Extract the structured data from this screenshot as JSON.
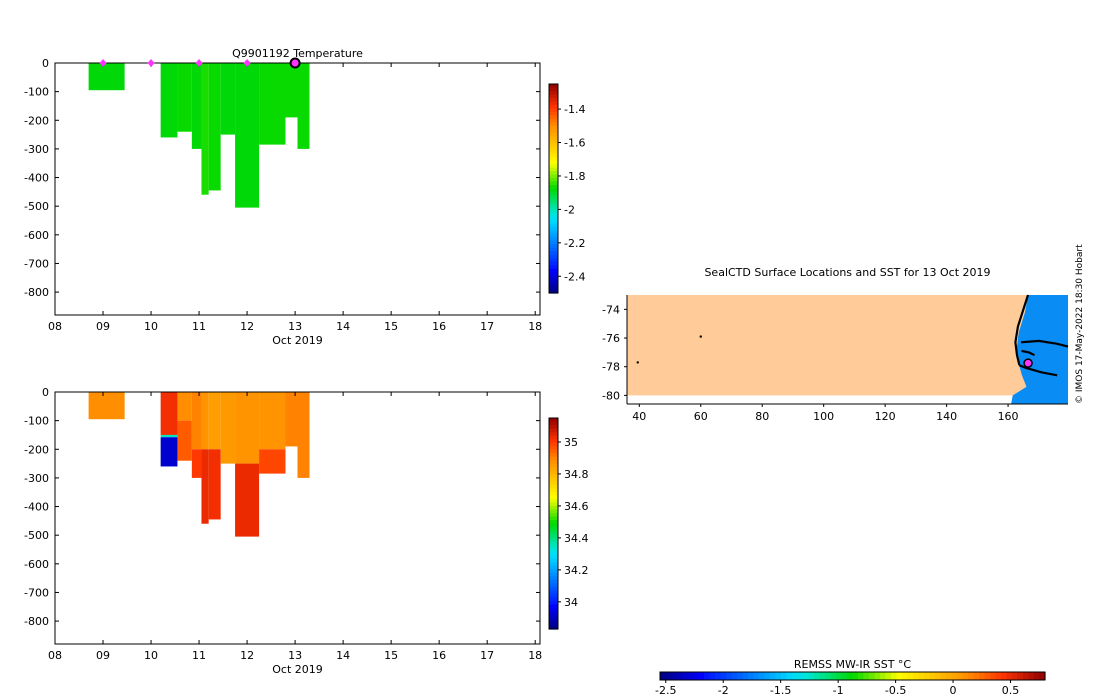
{
  "credit": "© IMOS 17-May-2022 18:30 Hobart",
  "colors": {
    "land": "#ffcc99",
    "ice_blue": "#0a8cf5",
    "coast": "#000000",
    "marker": "#ff33ff",
    "marker_edge": "#000000"
  },
  "chart_data": [
    {
      "id": "temperature",
      "type": "heatmap",
      "title": "Q9901192  Temperature",
      "xlabel": "Oct 2019",
      "ylabel": "",
      "xlim": [
        8,
        18.1
      ],
      "ylim": [
        -880,
        0
      ],
      "x_tick_labels": [
        "08",
        "09",
        "10",
        "11",
        "12",
        "13",
        "14",
        "15",
        "16",
        "17",
        "18"
      ],
      "x_tick_values": [
        8,
        9,
        10,
        11,
        12,
        13,
        14,
        15,
        16,
        17,
        18
      ],
      "y_tick_labels": [
        "0",
        "-100",
        "-200",
        "-300",
        "-400",
        "-500",
        "-600",
        "-700",
        "-800"
      ],
      "y_tick_values": [
        0,
        -100,
        -200,
        -300,
        -400,
        -500,
        -600,
        -700,
        -800
      ],
      "color_range": [
        -2.5,
        -1.25
      ],
      "colorbar_ticks": [
        "-1.4",
        "-1.6",
        "-1.8",
        "-2",
        "-2.2",
        "-2.4"
      ],
      "colorbar_tick_values": [
        -1.4,
        -1.6,
        -1.8,
        -2,
        -2.2,
        -2.4
      ],
      "profile_markers_x": [
        9.0,
        10.0,
        11.0,
        12.0
      ],
      "current_marker_x": 13.0,
      "columns": [
        {
          "x0": 8.7,
          "x1": 9.45,
          "cells": [
            [
              0,
              -95,
              -1.88
            ]
          ]
        },
        {
          "x0": 10.2,
          "x1": 10.55,
          "cells": [
            [
              0,
              -260,
              -1.88
            ]
          ]
        },
        {
          "x0": 10.55,
          "x1": 10.85,
          "cells": [
            [
              0,
              -240,
              -1.87
            ]
          ]
        },
        {
          "x0": 10.85,
          "x1": 11.05,
          "cells": [
            [
              0,
              -300,
              -1.88
            ]
          ]
        },
        {
          "x0": 11.05,
          "x1": 11.2,
          "cells": [
            [
              0,
              -460,
              -1.86
            ]
          ]
        },
        {
          "x0": 11.2,
          "x1": 11.45,
          "cells": [
            [
              0,
              -445,
              -1.87
            ]
          ]
        },
        {
          "x0": 11.45,
          "x1": 11.75,
          "cells": [
            [
              0,
              -250,
              -1.88
            ]
          ]
        },
        {
          "x0": 11.75,
          "x1": 12.25,
          "cells": [
            [
              0,
              -505,
              -1.88
            ]
          ]
        },
        {
          "x0": 12.25,
          "x1": 12.8,
          "cells": [
            [
              0,
              -285,
              -1.87
            ]
          ]
        },
        {
          "x0": 12.8,
          "x1": 13.05,
          "cells": [
            [
              0,
              -190,
              -1.87
            ]
          ]
        },
        {
          "x0": 13.05,
          "x1": 13.3,
          "cells": [
            [
              0,
              -300,
              -1.87
            ]
          ]
        }
      ]
    },
    {
      "id": "salinity",
      "type": "heatmap",
      "title": "",
      "xlabel": "Oct 2019",
      "ylabel": "",
      "xlim": [
        8,
        18.1
      ],
      "ylim": [
        -880,
        0
      ],
      "x_tick_labels": [
        "08",
        "09",
        "10",
        "11",
        "12",
        "13",
        "14",
        "15",
        "16",
        "17",
        "18"
      ],
      "x_tick_values": [
        8,
        9,
        10,
        11,
        12,
        13,
        14,
        15,
        16,
        17,
        18
      ],
      "y_tick_labels": [
        "0",
        "-100",
        "-200",
        "-300",
        "-400",
        "-500",
        "-600",
        "-700",
        "-800"
      ],
      "y_tick_values": [
        0,
        -100,
        -200,
        -300,
        -400,
        -500,
        -600,
        -700,
        -800
      ],
      "color_range": [
        33.83,
        35.15
      ],
      "colorbar_ticks": [
        "35",
        "34.8",
        "34.6",
        "34.4",
        "34.2",
        "34"
      ],
      "colorbar_tick_values": [
        35,
        34.8,
        34.6,
        34.4,
        34.2,
        34
      ],
      "columns": [
        {
          "x0": 8.7,
          "x1": 9.45,
          "cells": [
            [
              0,
              -95,
              34.88
            ]
          ]
        },
        {
          "x0": 10.2,
          "x1": 10.55,
          "cells": [
            [
              0,
              -150,
              35.02
            ],
            [
              -150,
              -158,
              34.35
            ],
            [
              -158,
              -260,
              33.92
            ]
          ]
        },
        {
          "x0": 10.55,
          "x1": 10.85,
          "cells": [
            [
              0,
              -100,
              34.88
            ],
            [
              -100,
              -240,
              34.95
            ]
          ]
        },
        {
          "x0": 10.85,
          "x1": 11.05,
          "cells": [
            [
              0,
              -200,
              34.9
            ],
            [
              -200,
              -300,
              35.0
            ]
          ]
        },
        {
          "x0": 11.05,
          "x1": 11.2,
          "cells": [
            [
              0,
              -200,
              34.87
            ],
            [
              -200,
              -460,
              35.03
            ]
          ]
        },
        {
          "x0": 11.2,
          "x1": 11.45,
          "cells": [
            [
              0,
              -200,
              34.85
            ],
            [
              -200,
              -445,
              35.02
            ]
          ]
        },
        {
          "x0": 11.45,
          "x1": 11.75,
          "cells": [
            [
              0,
              -250,
              34.86
            ]
          ]
        },
        {
          "x0": 11.75,
          "x1": 12.25,
          "cells": [
            [
              0,
              -250,
              34.87
            ],
            [
              -250,
              -505,
              35.03
            ]
          ]
        },
        {
          "x0": 12.25,
          "x1": 12.8,
          "cells": [
            [
              0,
              -200,
              34.87
            ],
            [
              -200,
              -285,
              34.98
            ]
          ]
        },
        {
          "x0": 12.8,
          "x1": 13.05,
          "cells": [
            [
              0,
              -190,
              34.9
            ]
          ]
        },
        {
          "x0": 13.05,
          "x1": 13.3,
          "cells": [
            [
              0,
              -300,
              34.9
            ]
          ]
        }
      ]
    },
    {
      "id": "map",
      "type": "map",
      "title": "SealCTD Surface Locations and SST for 13 Oct 2019",
      "xlim": [
        36,
        179.5
      ],
      "ylim": [
        -80.6,
        -73.0
      ],
      "x_tick_labels": [
        "40",
        "60",
        "80",
        "100",
        "120",
        "140",
        "160"
      ],
      "x_tick_values": [
        40,
        60,
        80,
        100,
        120,
        140,
        160
      ],
      "y_tick_labels": [
        "-74",
        "-76",
        "-78",
        "-80"
      ],
      "y_tick_values": [
        -74,
        -76,
        -78,
        -80
      ],
      "land_lat_north": -80.0,
      "surface_points": [
        [
          39.5,
          -77.7
        ],
        [
          60.0,
          -75.9
        ]
      ],
      "current_location": [
        166.5,
        -77.75
      ],
      "sea_ice_region": [
        [
          166.5,
          -73.0
        ],
        [
          179.5,
          -73.0
        ],
        [
          179.5,
          -80.6
        ],
        [
          161.0,
          -80.6
        ],
        [
          161.5,
          -80.0
        ],
        [
          166.0,
          -79.4
        ],
        [
          164.5,
          -78.6
        ],
        [
          163.5,
          -77.8
        ],
        [
          162.8,
          -76.7
        ],
        [
          163.5,
          -75.6
        ],
        [
          165.5,
          -74.2
        ]
      ],
      "coast_segments": [
        [
          [
            166.5,
            -73.0
          ],
          [
            165.0,
            -74.0
          ],
          [
            163.2,
            -75.2
          ],
          [
            162.4,
            -76.3
          ],
          [
            162.9,
            -77.2
          ],
          [
            163.7,
            -77.9
          ]
        ],
        [
          [
            164.2,
            -76.3
          ],
          [
            170.0,
            -76.2
          ],
          [
            176.0,
            -76.4
          ],
          [
            179.5,
            -76.6
          ]
        ],
        [
          [
            163.7,
            -77.9
          ],
          [
            166.0,
            -78.1
          ],
          [
            171.0,
            -78.4
          ],
          [
            176.0,
            -78.6
          ]
        ],
        [
          [
            164.4,
            -76.9
          ],
          [
            166.8,
            -77.0
          ],
          [
            168.6,
            -77.2
          ]
        ]
      ]
    },
    {
      "id": "sst_colorbar",
      "type": "colorbar",
      "label": "REMSS MW-IR SST °C",
      "range": [
        -2.55,
        0.8
      ],
      "tick_labels": [
        "-2.5",
        "-2",
        "-1.5",
        "-1",
        "-0.5",
        "0",
        "0.5"
      ],
      "tick_values": [
        -2.5,
        -2,
        -1.5,
        -1,
        -0.5,
        0,
        0.5
      ]
    }
  ]
}
